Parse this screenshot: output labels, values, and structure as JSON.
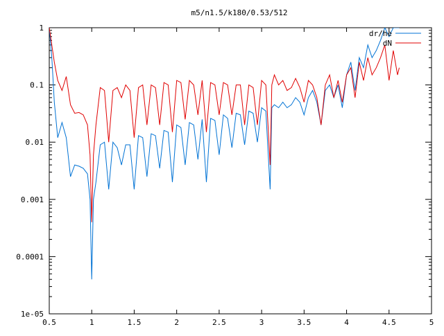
{
  "chart_data": {
    "type": "line",
    "title": "m5/n1.5/k180/0.53/512",
    "xlabel": "",
    "ylabel": "",
    "xlim": [
      0.5,
      5
    ],
    "ylim": [
      1e-05,
      1
    ],
    "yscale": "log",
    "grid": false,
    "legend_position": "top-right",
    "x_ticks": [
      "0.5",
      "1",
      "1.5",
      "2",
      "2.5",
      "3",
      "3.5",
      "4",
      "4.5",
      "5"
    ],
    "y_ticks": [
      "1e-05",
      "0.0001",
      "0.001",
      "0.01",
      "0.1",
      "1"
    ],
    "series": [
      {
        "name": "dr/he",
        "color": "#0072d4",
        "x": [
          0.5,
          0.53,
          0.56,
          0.6,
          0.65,
          0.7,
          0.75,
          0.8,
          0.85,
          0.9,
          0.95,
          0.98,
          1.0,
          1.02,
          1.05,
          1.1,
          1.15,
          1.2,
          1.25,
          1.3,
          1.35,
          1.4,
          1.45,
          1.5,
          1.55,
          1.6,
          1.65,
          1.7,
          1.75,
          1.8,
          1.85,
          1.9,
          1.95,
          2.0,
          2.05,
          2.1,
          2.15,
          2.2,
          2.25,
          2.3,
          2.35,
          2.4,
          2.45,
          2.5,
          2.55,
          2.6,
          2.65,
          2.7,
          2.75,
          2.8,
          2.85,
          2.9,
          2.95,
          3.0,
          3.05,
          3.1,
          3.12,
          3.15,
          3.2,
          3.25,
          3.3,
          3.35,
          3.4,
          3.45,
          3.5,
          3.55,
          3.6,
          3.65,
          3.7,
          3.75,
          3.8,
          3.85,
          3.9,
          3.95,
          4.0,
          4.05,
          4.1,
          4.15,
          4.2,
          4.25,
          4.3,
          4.35,
          4.4,
          4.45,
          4.5,
          4.55,
          4.6,
          4.62
        ],
        "y": [
          1.0,
          0.3,
          0.05,
          0.012,
          0.022,
          0.012,
          0.0025,
          0.004,
          0.0038,
          0.0035,
          0.0028,
          0.001,
          4e-05,
          0.001,
          0.002,
          0.009,
          0.01,
          0.0015,
          0.01,
          0.008,
          0.004,
          0.009,
          0.009,
          0.0015,
          0.013,
          0.012,
          0.0025,
          0.014,
          0.013,
          0.0035,
          0.016,
          0.015,
          0.002,
          0.02,
          0.018,
          0.004,
          0.022,
          0.02,
          0.005,
          0.025,
          0.002,
          0.026,
          0.024,
          0.006,
          0.03,
          0.026,
          0.008,
          0.032,
          0.03,
          0.009,
          0.035,
          0.032,
          0.01,
          0.04,
          0.035,
          0.0015,
          0.04,
          0.045,
          0.04,
          0.05,
          0.04,
          0.045,
          0.06,
          0.05,
          0.03,
          0.06,
          0.08,
          0.05,
          0.02,
          0.08,
          0.1,
          0.06,
          0.1,
          0.04,
          0.15,
          0.25,
          0.08,
          0.3,
          0.2,
          0.5,
          0.3,
          0.4,
          0.6,
          1.0,
          0.7,
          1.0,
          1.0,
          1.0
        ]
      },
      {
        "name": "dN",
        "color": "#e00000",
        "x": [
          0.5,
          0.53,
          0.56,
          0.6,
          0.65,
          0.7,
          0.75,
          0.8,
          0.85,
          0.9,
          0.95,
          0.98,
          1.0,
          1.02,
          1.05,
          1.1,
          1.15,
          1.2,
          1.25,
          1.3,
          1.35,
          1.4,
          1.45,
          1.5,
          1.55,
          1.6,
          1.65,
          1.7,
          1.75,
          1.8,
          1.85,
          1.9,
          1.95,
          2.0,
          2.05,
          2.1,
          2.15,
          2.2,
          2.25,
          2.3,
          2.35,
          2.4,
          2.45,
          2.5,
          2.55,
          2.6,
          2.65,
          2.7,
          2.75,
          2.8,
          2.85,
          2.9,
          2.95,
          3.0,
          3.05,
          3.1,
          3.12,
          3.15,
          3.2,
          3.25,
          3.3,
          3.35,
          3.4,
          3.45,
          3.5,
          3.55,
          3.6,
          3.65,
          3.7,
          3.75,
          3.8,
          3.85,
          3.9,
          3.95,
          4.0,
          4.05,
          4.1,
          4.15,
          4.2,
          4.25,
          4.3,
          4.35,
          4.4,
          4.45,
          4.5,
          4.55,
          4.6,
          4.62
        ],
        "y": [
          1.0,
          0.5,
          0.25,
          0.12,
          0.08,
          0.14,
          0.045,
          0.032,
          0.033,
          0.03,
          0.02,
          0.006,
          0.0004,
          0.006,
          0.02,
          0.09,
          0.08,
          0.01,
          0.08,
          0.09,
          0.06,
          0.1,
          0.08,
          0.012,
          0.09,
          0.1,
          0.02,
          0.1,
          0.09,
          0.02,
          0.11,
          0.1,
          0.015,
          0.12,
          0.11,
          0.025,
          0.12,
          0.1,
          0.03,
          0.12,
          0.015,
          0.11,
          0.1,
          0.03,
          0.11,
          0.1,
          0.03,
          0.1,
          0.1,
          0.02,
          0.1,
          0.09,
          0.02,
          0.12,
          0.1,
          0.004,
          0.1,
          0.15,
          0.1,
          0.12,
          0.08,
          0.09,
          0.13,
          0.09,
          0.05,
          0.12,
          0.1,
          0.06,
          0.02,
          0.1,
          0.15,
          0.06,
          0.12,
          0.05,
          0.15,
          0.2,
          0.06,
          0.25,
          0.12,
          0.3,
          0.15,
          0.2,
          0.3,
          0.5,
          0.12,
          0.4,
          0.15,
          0.2
        ]
      }
    ]
  }
}
